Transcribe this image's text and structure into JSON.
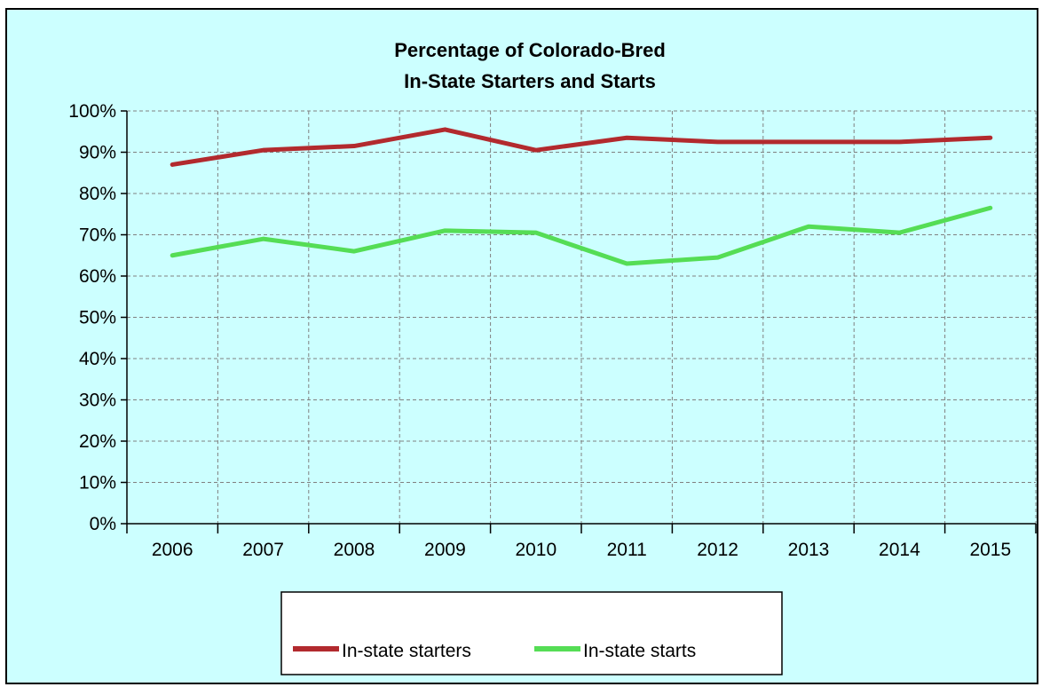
{
  "chart_data": {
    "type": "line",
    "title": [
      "Percentage of Colorado-Bred",
      "In-State Starters and Starts"
    ],
    "xlabel": "",
    "ylabel": "",
    "categories": [
      "2006",
      "2007",
      "2008",
      "2009",
      "2010",
      "2011",
      "2012",
      "2013",
      "2014",
      "2015"
    ],
    "y_ticks": [
      "0%",
      "10%",
      "20%",
      "30%",
      "40%",
      "50%",
      "60%",
      "70%",
      "80%",
      "90%",
      "100%"
    ],
    "ylim": [
      0,
      100
    ],
    "grid": true,
    "legend_position": "bottom",
    "series": [
      {
        "name": "In-state starters",
        "color": "#b22a2e",
        "values": [
          87,
          90.5,
          91.5,
          95.5,
          90.5,
          93.5,
          92.5,
          92.5,
          92.5,
          93.5
        ]
      },
      {
        "name": "In-state starts",
        "color": "#55dd55",
        "values": [
          65,
          69,
          66,
          71,
          70.5,
          63,
          64.5,
          72,
          70.5,
          76.5
        ]
      }
    ]
  },
  "colors": {
    "background": "#ccffff",
    "grid": "#808080",
    "axis": "#000000"
  }
}
